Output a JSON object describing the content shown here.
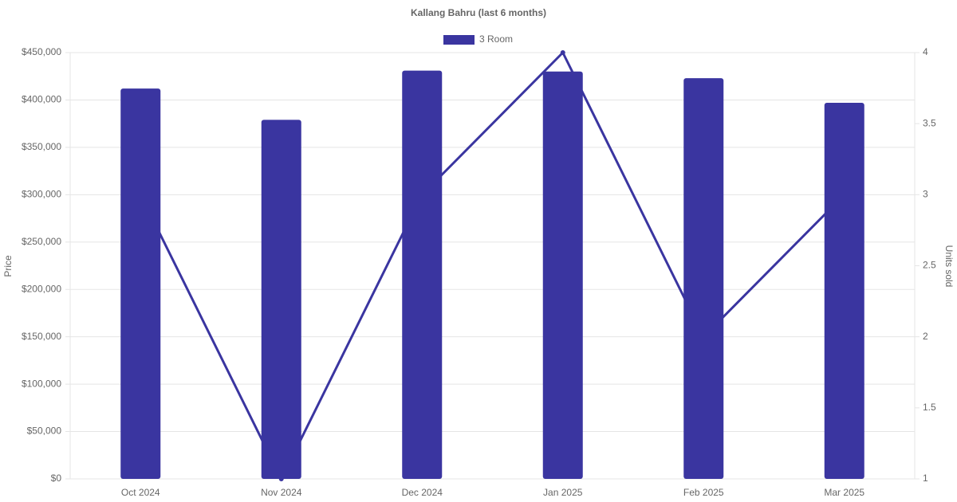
{
  "chart_data": {
    "type": "bar",
    "title": "Kallang Bahru (last 6 months)",
    "y_label": "Price",
    "y2_label": "Units sold",
    "categories": [
      "Oct 2024",
      "Nov 2024",
      "Dec 2024",
      "Jan 2025",
      "Feb 2025",
      "Mar 2025"
    ],
    "series": [
      {
        "name": "3 Room",
        "type": "bar",
        "color": "#3a35a0",
        "values": [
          412000,
          379000,
          431000,
          430000,
          423000,
          397000
        ]
      },
      {
        "type": "line",
        "axis": "y2",
        "color": "#3a35a0",
        "values": [
          3,
          1,
          3,
          4,
          2,
          3
        ]
      }
    ],
    "ylim": [
      0,
      450000
    ],
    "yticks": [
      {
        "value": 0,
        "label": "$0"
      },
      {
        "value": 50000,
        "label": "$50,000"
      },
      {
        "value": 100000,
        "label": "$100,000"
      },
      {
        "value": 150000,
        "label": "$150,000"
      },
      {
        "value": 200000,
        "label": "$200,000"
      },
      {
        "value": 250000,
        "label": "$250,000"
      },
      {
        "value": 300000,
        "label": "$300,000"
      },
      {
        "value": 350000,
        "label": "$350,000"
      },
      {
        "value": 400000,
        "label": "$400,000"
      },
      {
        "value": 450000,
        "label": "$450,000"
      }
    ],
    "y2lim": [
      1,
      4
    ],
    "y2ticks": [
      1,
      1.5,
      2,
      2.5,
      3,
      3.5,
      4
    ],
    "grid": true
  }
}
